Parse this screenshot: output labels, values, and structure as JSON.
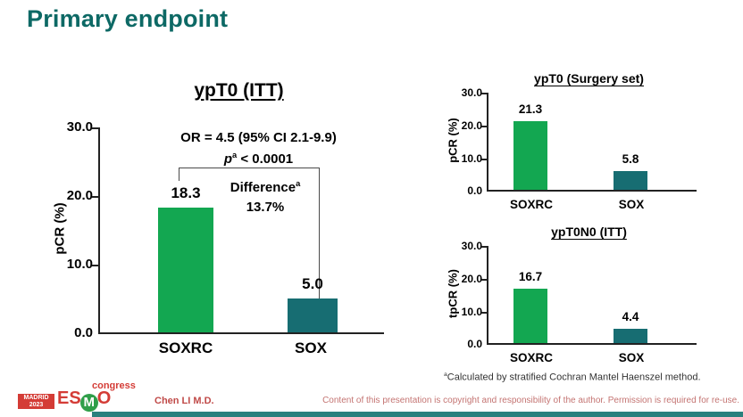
{
  "slide": {
    "title": "Primary endpoint",
    "presenter": "Chen LI M.D.",
    "copyright": "Content of this presentation is copyright and responsibility of the author. Permission is required for re-use.",
    "footnote": {
      "sup": "a",
      "text": "Calculated by stratified Cochran Mantel Haenszel method."
    },
    "logo": {
      "venue": "MADRID",
      "year": "2023",
      "org_es": "ES",
      "org_m": "M",
      "org_o": "O",
      "event": "congress"
    }
  },
  "colors": {
    "title_teal": "#0d6965",
    "bar_green": "#13a751",
    "bar_teal": "#176d72",
    "footer_red": "#c04a48",
    "bottom_bar": "#2a807d"
  },
  "chart_data": [
    {
      "type": "bar",
      "title": "ypT0 (ITT)",
      "ylabel": "pCR (%)",
      "categories": [
        "SOXRC",
        "SOX"
      ],
      "values": [
        18.3,
        5.0
      ],
      "value_labels": [
        "18.3",
        "5.0"
      ],
      "ylim": [
        0,
        30
      ],
      "yticks": [
        "30.0",
        "20.0",
        "10.0",
        "0.0"
      ],
      "bar_colors": [
        "#13a751",
        "#176d72"
      ],
      "grid": false,
      "annotations": {
        "or_line": "OR = 4.5 (95% CI 2.1-9.9)",
        "p_var": "p",
        "p_sup": "a",
        "p_rest": " < 0.0001",
        "diff_label": "Difference",
        "diff_sup": "a",
        "diff_value": "13.7%"
      }
    },
    {
      "type": "bar",
      "title": "ypT0 (Surgery set)",
      "ylabel": "pCR (%)",
      "categories": [
        "SOXRC",
        "SOX"
      ],
      "values": [
        21.3,
        5.8
      ],
      "value_labels": [
        "21.3",
        "5.8"
      ],
      "ylim": [
        0,
        30
      ],
      "yticks": [
        "30.0",
        "20.0",
        "10.0",
        "0.0"
      ],
      "bar_colors": [
        "#13a751",
        "#176d72"
      ],
      "grid": false
    },
    {
      "type": "bar",
      "title": "ypT0N0 (ITT)",
      "ylabel": "tpCR (%)",
      "categories": [
        "SOXRC",
        "SOX"
      ],
      "values": [
        16.7,
        4.4
      ],
      "value_labels": [
        "16.7",
        "4.4"
      ],
      "ylim": [
        0,
        30
      ],
      "yticks": [
        "30.0",
        "20.0",
        "10.0",
        "0.0"
      ],
      "bar_colors": [
        "#13a751",
        "#176d72"
      ],
      "grid": false
    }
  ]
}
